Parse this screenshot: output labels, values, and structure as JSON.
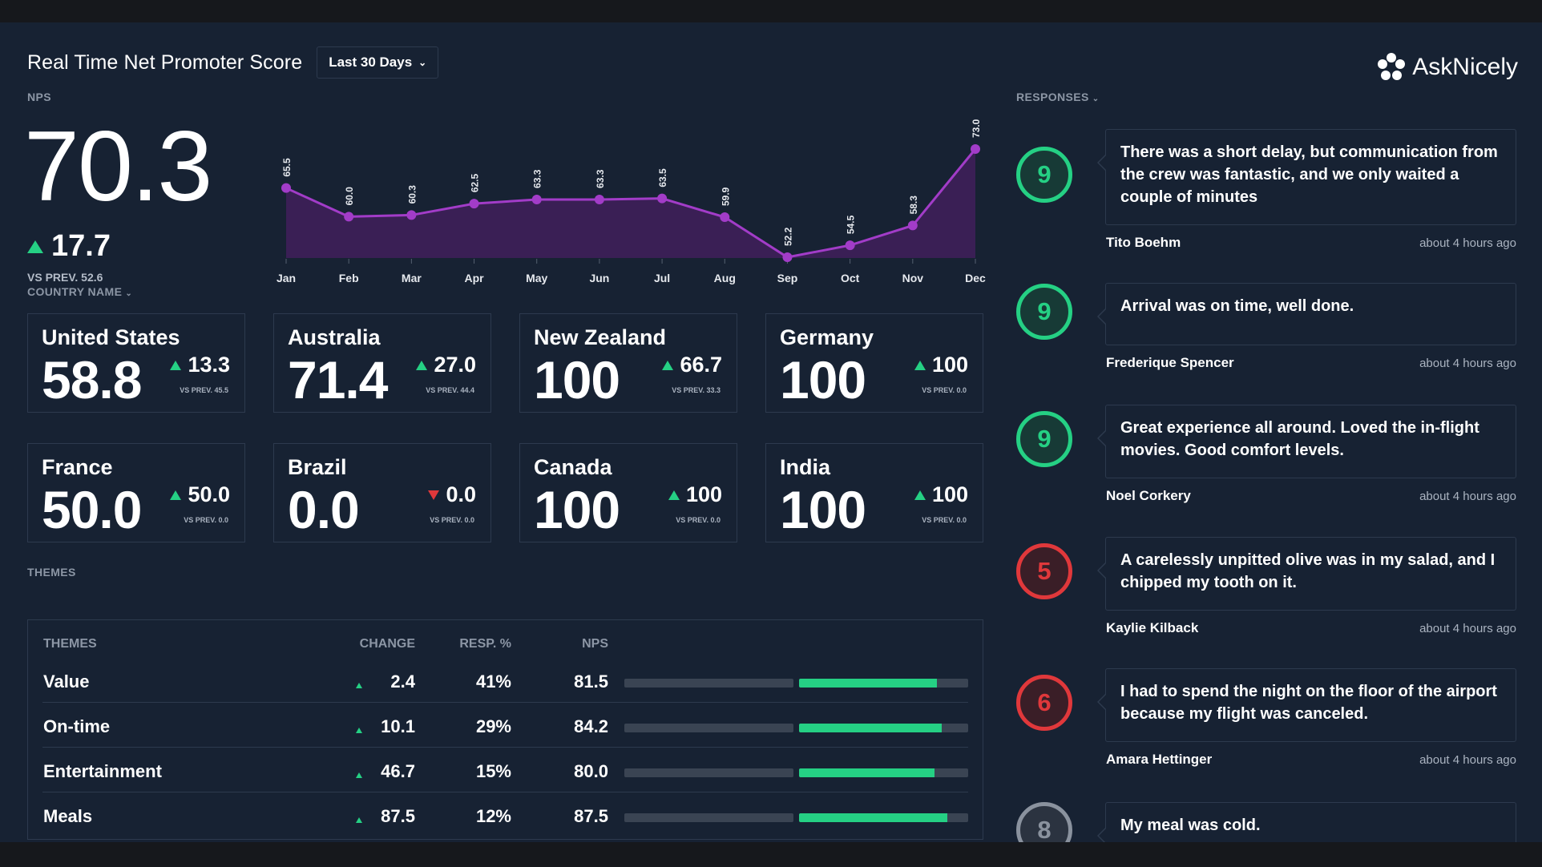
{
  "header": {
    "title": "Real Time Net Promoter Score",
    "range_label": "Last 30 Days",
    "logo_text": "AskNicely"
  },
  "nps": {
    "label": "NPS",
    "score": "70.3",
    "delta": "17.7",
    "prev": "VS PREV. 52.6"
  },
  "chart_data": {
    "type": "area",
    "categories": [
      "Jan",
      "Feb",
      "Mar",
      "Apr",
      "May",
      "Jun",
      "Jul",
      "Aug",
      "Sep",
      "Oct",
      "Nov",
      "Dec"
    ],
    "values": [
      65.5,
      60.0,
      60.3,
      62.5,
      63.3,
      63.3,
      63.5,
      59.9,
      52.2,
      54.5,
      58.3,
      73.0
    ],
    "value_labels": [
      "65.5",
      "60.0",
      "60.3",
      "62.5",
      "63.3",
      "63.3",
      "63.5",
      "59.9",
      "52.2",
      "54.5",
      "58.3",
      "73.0"
    ],
    "line_color": "#a23cc8",
    "area_color": "#3a1f55",
    "grid": false
  },
  "countries": {
    "label": "COUNTRY NAME",
    "items": [
      {
        "name": "United States",
        "score": "58.8",
        "delta": "13.3",
        "direction": "up",
        "prev": "VS PREV. 45.5"
      },
      {
        "name": "Australia",
        "score": "71.4",
        "delta": "27.0",
        "direction": "up",
        "prev": "VS PREV. 44.4"
      },
      {
        "name": "New Zealand",
        "score": "100",
        "delta": "66.7",
        "direction": "up",
        "prev": "VS PREV. 33.3"
      },
      {
        "name": "Germany",
        "score": "100",
        "delta": "100",
        "direction": "up",
        "prev": "VS PREV. 0.0"
      },
      {
        "name": "France",
        "score": "50.0",
        "delta": "50.0",
        "direction": "up",
        "prev": "VS PREV. 0.0"
      },
      {
        "name": "Brazil",
        "score": "0.0",
        "delta": "0.0",
        "direction": "down",
        "prev": "VS PREV. 0.0"
      },
      {
        "name": "Canada",
        "score": "100",
        "delta": "100",
        "direction": "up",
        "prev": "VS PREV. 0.0"
      },
      {
        "name": "India",
        "score": "100",
        "delta": "100",
        "direction": "up",
        "prev": "VS PREV. 0.0"
      }
    ]
  },
  "themes": {
    "label": "THEMES",
    "headers": {
      "name": "THEMES",
      "change": "CHANGE",
      "resp": "RESP. %",
      "nps": "NPS"
    },
    "rows": [
      {
        "name": "Value",
        "change": "2.4",
        "resp": "41%",
        "nps": "81.5",
        "nps_fraction": 0.815
      },
      {
        "name": "On-time",
        "change": "10.1",
        "resp": "29%",
        "nps": "84.2",
        "nps_fraction": 0.842
      },
      {
        "name": "Entertainment",
        "change": "46.7",
        "resp": "15%",
        "nps": "80.0",
        "nps_fraction": 0.8
      },
      {
        "name": "Meals",
        "change": "87.5",
        "resp": "12%",
        "nps": "87.5",
        "nps_fraction": 0.875
      }
    ]
  },
  "responses": {
    "label": "RESPONSES",
    "items": [
      {
        "score": "9",
        "color": "#25d084",
        "bg": "#173a36",
        "text": "There was a short delay, but communication from the crew was fantastic, and we only waited a couple of minutes",
        "name": "Tito Boehm",
        "time": "about 4 hours ago"
      },
      {
        "score": "9",
        "color": "#25d084",
        "bg": "#173a36",
        "text": "Arrival was on time, well done.",
        "name": "Frederique Spencer",
        "time": "about 4 hours ago"
      },
      {
        "score": "9",
        "color": "#25d084",
        "bg": "#173a36",
        "text": "Great experience all around. Loved the in-flight movies. Good comfort levels.",
        "name": "Noel Corkery",
        "time": "about 4 hours ago"
      },
      {
        "score": "5",
        "color": "#e0383b",
        "bg": "#3a1e27",
        "text": "A carelessly unpitted olive was in my salad, and I chipped my tooth on it.",
        "name": "Kaylie Kilback",
        "time": "about 4 hours ago"
      },
      {
        "score": "6",
        "color": "#e0383b",
        "bg": "#3a1e27",
        "text": "I had to spend the night on the floor of the airport because my flight was canceled.",
        "name": "Amara Hettinger",
        "time": "about 4 hours ago"
      },
      {
        "score": "8",
        "color": "#8a929e",
        "bg": "#2b3340",
        "text": "My meal was cold.",
        "name": "",
        "time": ""
      }
    ]
  }
}
